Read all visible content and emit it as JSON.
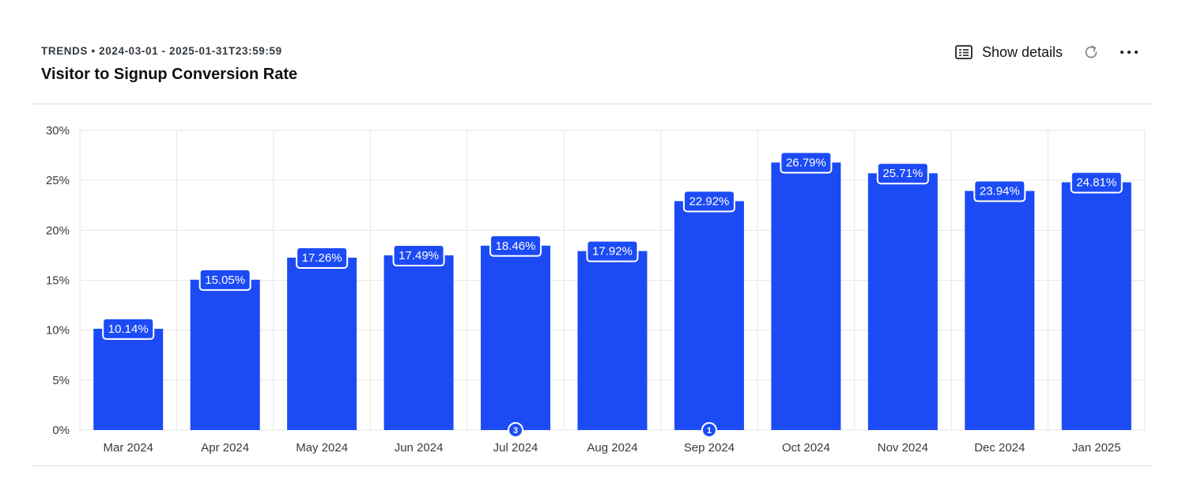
{
  "header": {
    "subtitle": "TRENDS • 2024-03-01 - 2025-01-31T23:59:59",
    "title": "Visitor to Signup Conversion Rate"
  },
  "actions": {
    "show_details_label": "Show details",
    "show_details_icon": "details-panel-icon",
    "refresh_icon": "refresh-icon",
    "more_icon": "more-horizontal-icon"
  },
  "colors": {
    "bar": "#1c4bf5",
    "grid": "#e6e6e6",
    "label_bg": "#1c4bf5",
    "label_border": "#ffffff"
  },
  "chart_data": {
    "type": "bar",
    "categories": [
      "Mar 2024",
      "Apr 2024",
      "May 2024",
      "Jun 2024",
      "Jul 2024",
      "Aug 2024",
      "Sep 2024",
      "Oct 2024",
      "Nov 2024",
      "Dec 2024",
      "Jan 2025"
    ],
    "series": [
      {
        "values": [
          10.14,
          15.05,
          17.26,
          17.49,
          18.46,
          17.92,
          22.92,
          26.79,
          25.71,
          23.94,
          24.81
        ]
      }
    ],
    "data_labels": [
      "10.14%",
      "15.05%",
      "17.26%",
      "17.49%",
      "18.46%",
      "17.92%",
      "22.92%",
      "26.79%",
      "25.71%",
      "23.94%",
      "24.81%"
    ],
    "yticks": [
      0,
      5,
      10,
      15,
      20,
      25,
      30
    ],
    "ytick_labels": [
      "0%",
      "5%",
      "10%",
      "15%",
      "20%",
      "25%",
      "30%"
    ],
    "ylim": [
      0,
      30
    ],
    "grid": true,
    "annotations": [
      {
        "category": "Jul 2024",
        "text": "3"
      },
      {
        "category": "Sep 2024",
        "text": "1"
      }
    ]
  }
}
